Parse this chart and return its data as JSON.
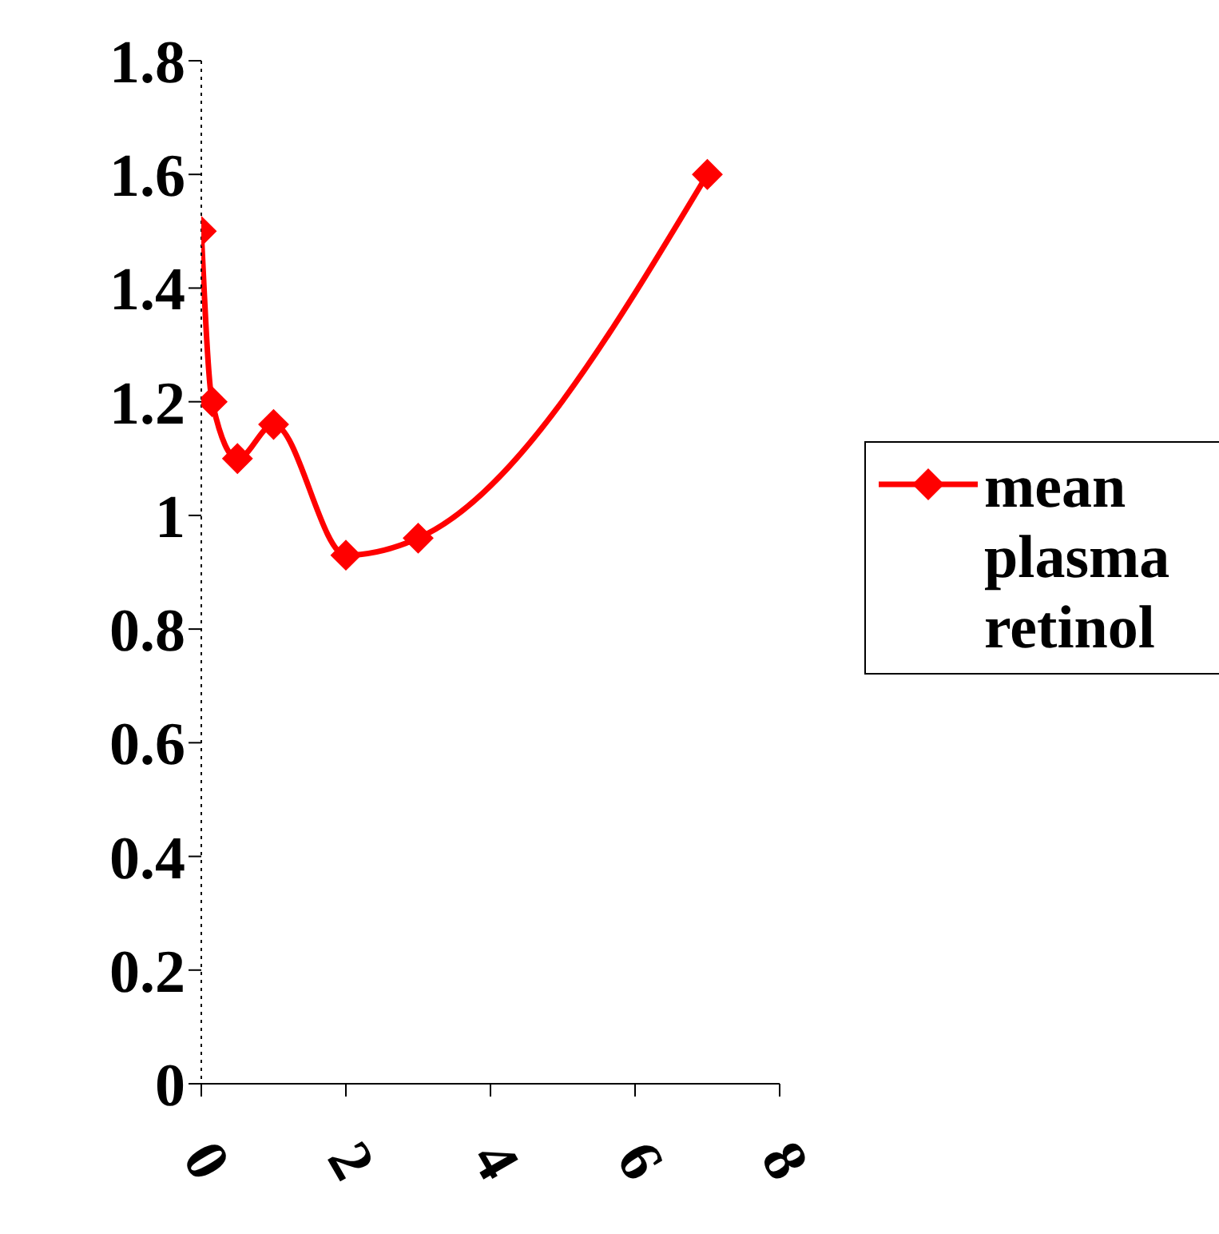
{
  "chart_data": {
    "type": "line",
    "x": [
      0,
      0.15,
      0.5,
      1,
      2,
      3,
      7
    ],
    "series": [
      {
        "name": "mean plasma retinol",
        "color": "#ff0000",
        "values": [
          1.5,
          1.2,
          1.1,
          1.16,
          0.93,
          0.96,
          1.6
        ]
      }
    ],
    "xlim": [
      0,
      8
    ],
    "xticks": [
      0,
      2,
      4,
      6,
      8
    ],
    "ylim": [
      0,
      1.8
    ],
    "yticks": [
      0,
      0.2,
      0.4,
      0.6,
      0.8,
      1,
      1.2,
      1.4,
      1.6,
      1.8
    ],
    "grid": false,
    "legend": "right",
    "marker": "diamond",
    "line_style": "solid"
  }
}
